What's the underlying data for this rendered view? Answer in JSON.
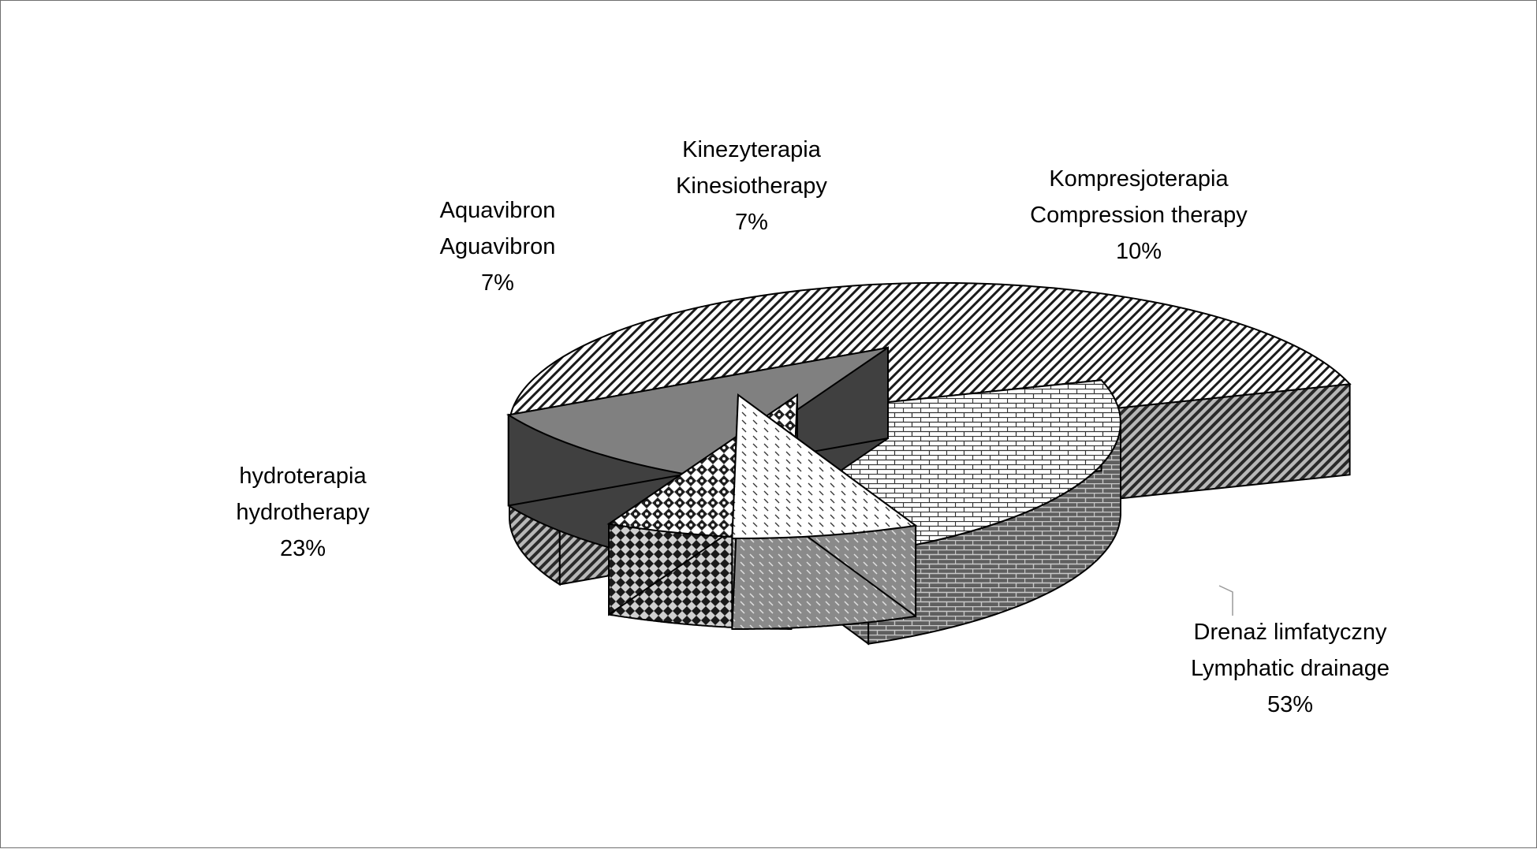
{
  "chart_data": {
    "type": "pie",
    "variant": "3d-exploded",
    "monochrome": true,
    "slices": [
      {
        "label_pl": "Drenaż limfatyczny",
        "label_en": "Lymphatic drainage",
        "value": 53,
        "value_label": "53%",
        "pattern": "diagonal-stripes",
        "top_color": "#ffffff",
        "side_color": "#9a9a9a"
      },
      {
        "label_pl": "hydroterapia",
        "label_en": "hydrotherapy",
        "value": 23,
        "value_label": "23%",
        "pattern": "bricks",
        "top_color": "#f4f4f4",
        "side_color": "#8c8c8c"
      },
      {
        "label_pl": "Aquavibron",
        "label_en": "Aguavibron",
        "value": 7,
        "value_label": "7%",
        "pattern": "dashed-diagonal",
        "top_color": "#f0f0f0",
        "side_color": "#9f9f9f"
      },
      {
        "label_pl": "Kinezyterapia",
        "label_en": "Kinesiotherapy",
        "value": 7,
        "value_label": "7%",
        "pattern": "checker-diamonds",
        "top_color": "#ffffff",
        "side_color": "#6a6a6a"
      },
      {
        "label_pl": "Kompresjoterapia",
        "label_en": "Compression therapy",
        "value": 10,
        "value_label": "10%",
        "pattern": "solid-gray",
        "top_color": "#808080",
        "side_color": "#404040"
      }
    ]
  }
}
